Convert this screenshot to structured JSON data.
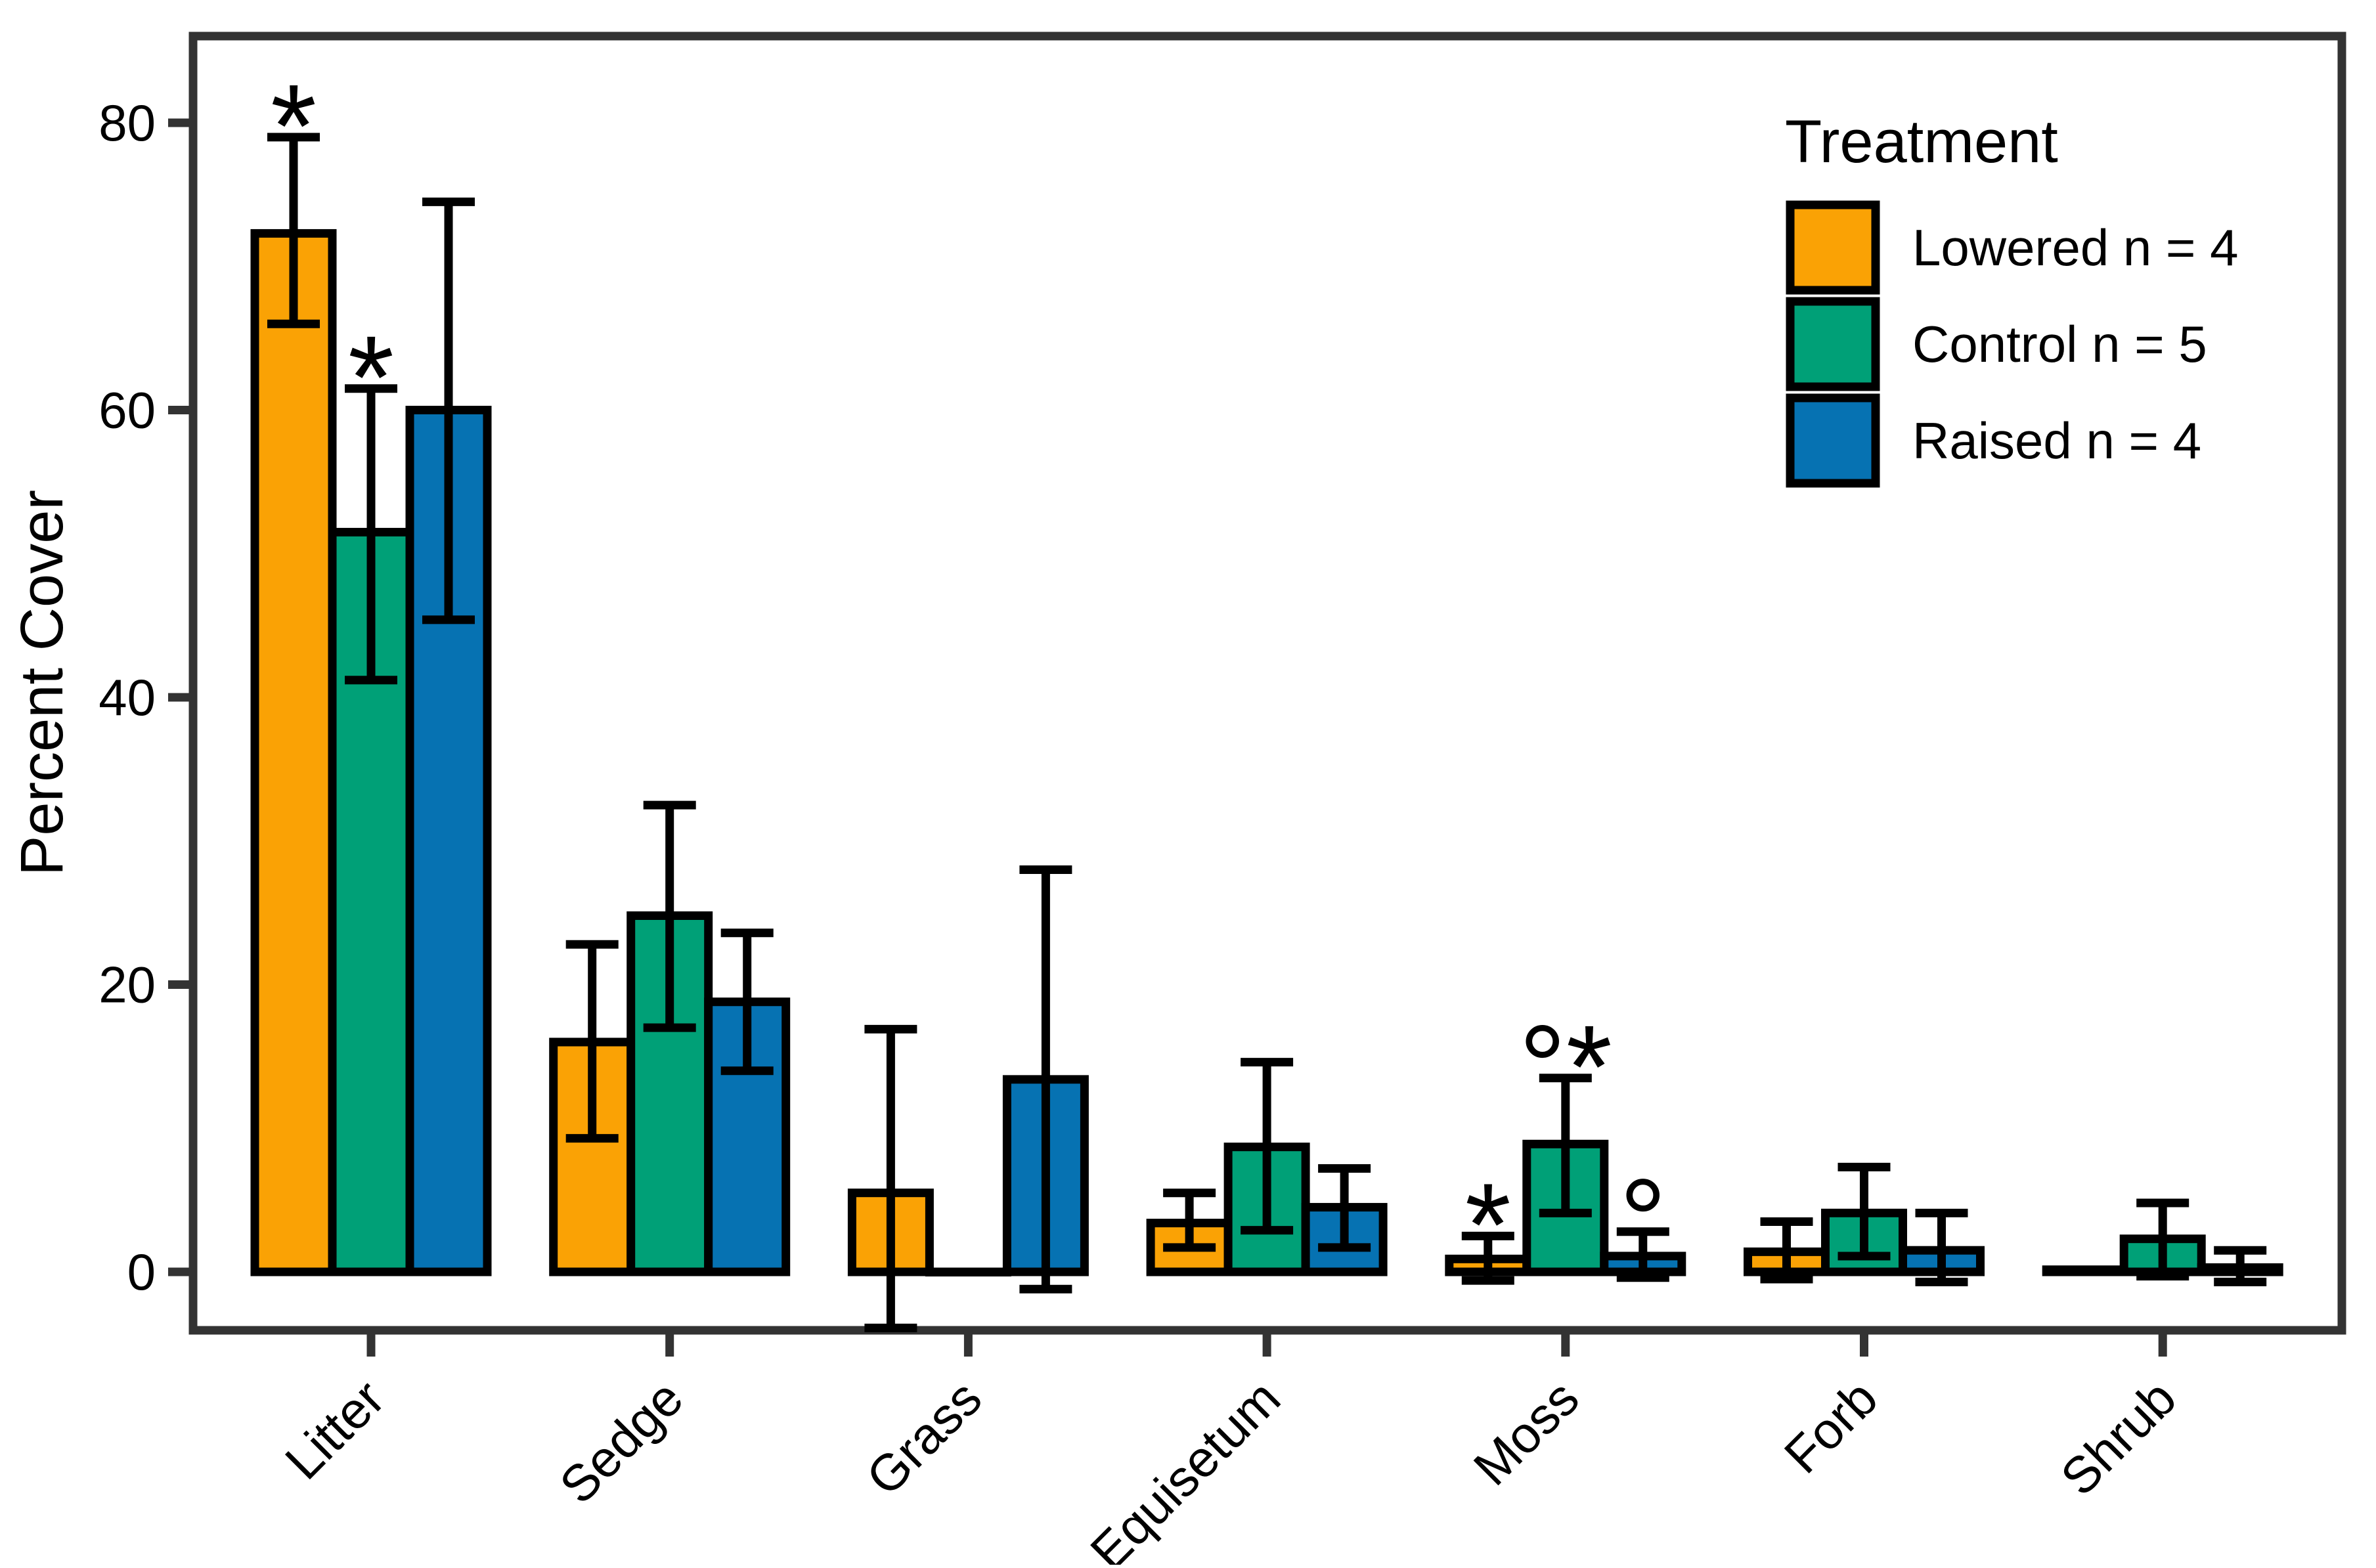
{
  "chart_data": {
    "type": "bar",
    "title": "",
    "xlabel": "",
    "ylabel": "Percent Cover",
    "ylim": [
      -4.1,
      86
    ],
    "yticks": [
      0,
      20,
      40,
      60,
      80
    ],
    "grid": false,
    "bar_outline_color": "#000000",
    "axis_color": "#333333",
    "categories": [
      "Litter",
      "Sedge",
      "Grass",
      "Equisetum",
      "Moss",
      "Forb",
      "Shrub"
    ],
    "legend": {
      "title": "Treatment",
      "position": "top-right-inside",
      "items": [
        {
          "label": "Lowered n = 4",
          "color": "#FAA205"
        },
        {
          "label": "Control n = 5",
          "color": "#00A077"
        },
        {
          "label": "Raised n = 4",
          "color": "#0672B2"
        }
      ]
    },
    "series": [
      {
        "name": "Lowered n = 4",
        "color": "#FAA205",
        "values": [
          72.3,
          16.0,
          5.5,
          3.4,
          0.9,
          1.4,
          0.15
        ],
        "error_low": [
          66.0,
          9.3,
          -3.9,
          1.7,
          -0.6,
          -0.5,
          null
        ],
        "error_high": [
          79.0,
          22.8,
          16.9,
          5.5,
          2.5,
          3.5,
          null
        ],
        "signif": [
          "*",
          "",
          "",
          "",
          "*",
          "",
          ""
        ]
      },
      {
        "name": "Control n = 5",
        "color": "#00A077",
        "values": [
          51.5,
          24.8,
          0.0,
          8.7,
          8.9,
          4.1,
          2.3
        ],
        "error_low": [
          41.2,
          17.0,
          null,
          2.9,
          4.1,
          1.1,
          -0.3
        ],
        "error_high": [
          61.5,
          32.5,
          null,
          14.6,
          13.5,
          7.3,
          4.8
        ],
        "signif": [
          "*",
          "",
          "",
          "",
          "°*",
          "",
          ""
        ]
      },
      {
        "name": "Raised n = 4",
        "color": "#0672B2",
        "values": [
          60.0,
          18.8,
          13.4,
          4.5,
          1.1,
          1.5,
          0.3
        ],
        "error_low": [
          45.4,
          14.0,
          -1.2,
          1.7,
          -0.4,
          -0.7,
          -0.7
        ],
        "error_high": [
          74.5,
          23.6,
          28.0,
          7.2,
          2.8,
          4.1,
          1.5
        ],
        "signif": [
          "",
          "",
          "",
          "",
          "°",
          "",
          ""
        ]
      }
    ]
  }
}
